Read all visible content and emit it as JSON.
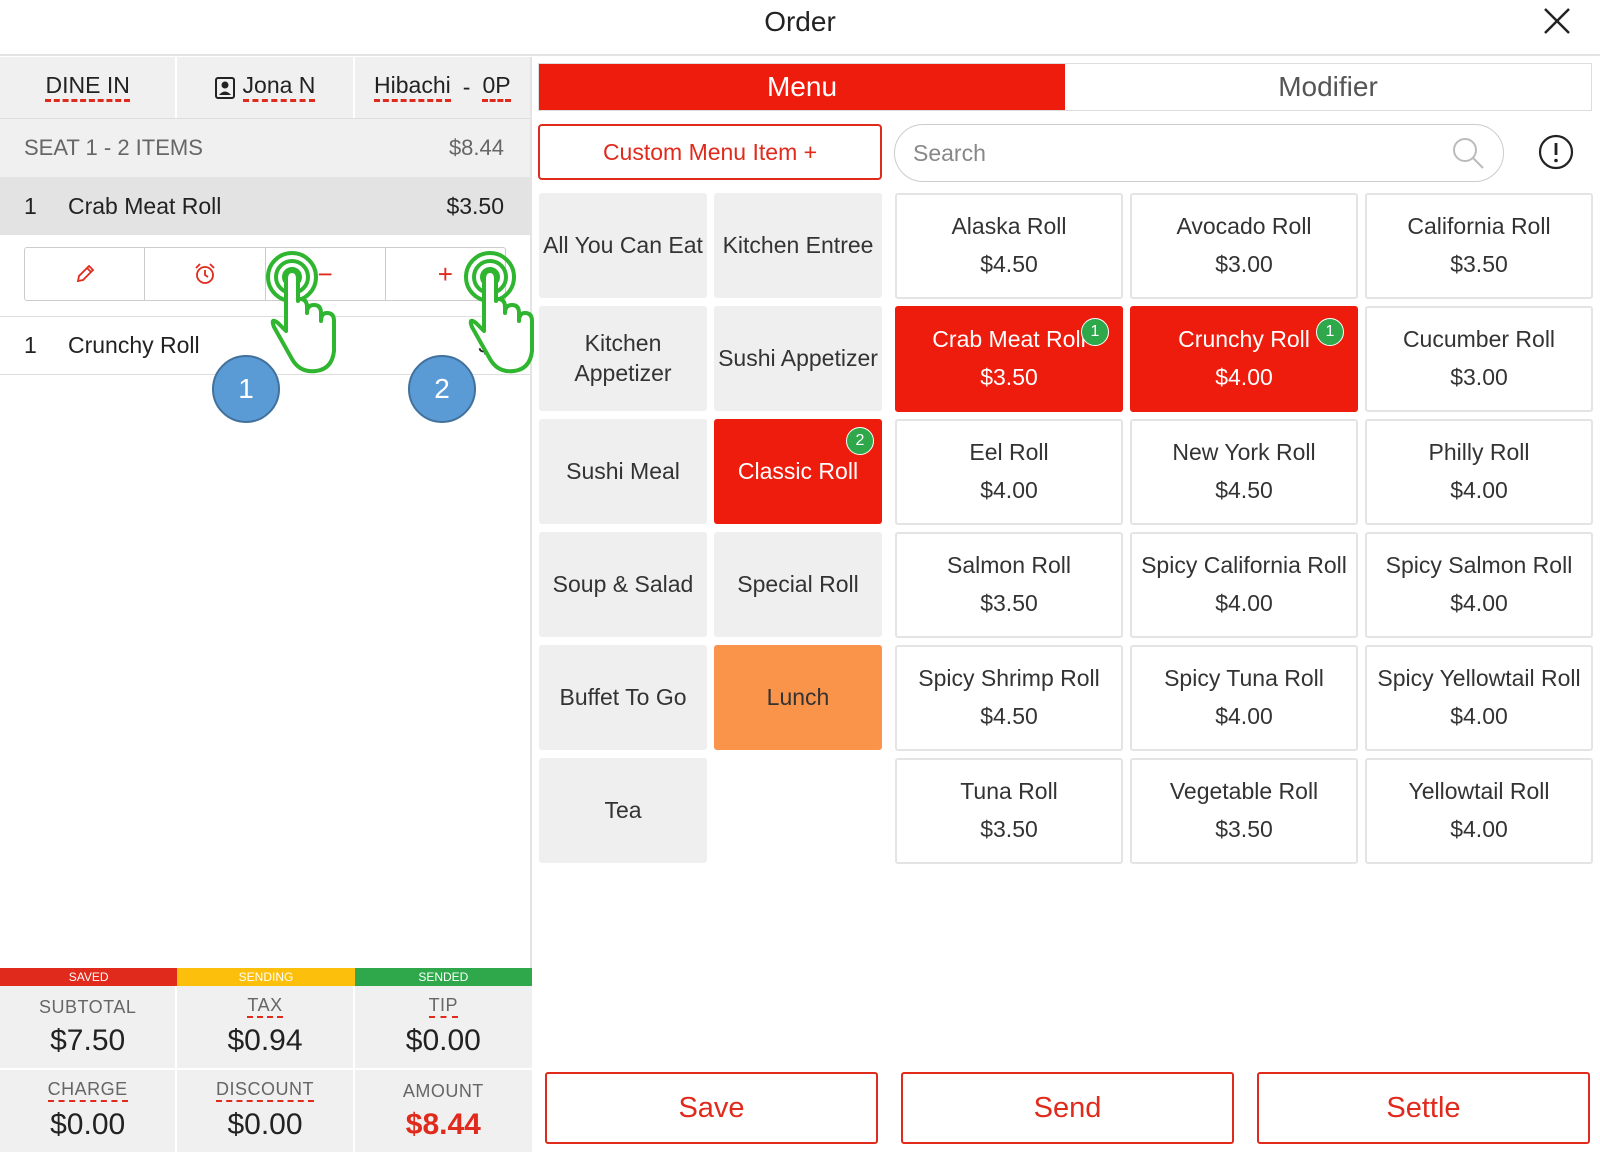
{
  "title": "Order",
  "header": {
    "order_type": "DINE IN",
    "server": "Jona N",
    "table_prefix": "Hibachi",
    "table_sep": "-",
    "table_num": "0P"
  },
  "seat": {
    "label": "SEAT 1 - 2 ITEMS",
    "total": "$8.44"
  },
  "order_items": [
    {
      "qty": "1",
      "name": "Crab Meat Roll",
      "price": "$3.50"
    },
    {
      "qty": "1",
      "name": "Crunchy Roll",
      "price": "$4"
    }
  ],
  "edit_bar": {
    "minus": "−",
    "plus": "+"
  },
  "callouts": [
    "1",
    "2"
  ],
  "status": {
    "saved": "SAVED",
    "sending": "SENDING",
    "sended": "SENDED"
  },
  "totals": {
    "subtotal_label": "SUBTOTAL",
    "subtotal": "$7.50",
    "tax_label": "TAX",
    "tax": "$0.94",
    "tip_label": "TIP",
    "tip": "$0.00",
    "charge_label": "CHARGE",
    "charge": "$0.00",
    "discount_label": "DISCOUNT",
    "discount": "$0.00",
    "amount_label": "AMOUNT",
    "amount": "$8.44"
  },
  "tabs": {
    "menu": "Menu",
    "modifier": "Modifier"
  },
  "custom_item": "Custom Menu Item  +",
  "search": {
    "placeholder": "Search"
  },
  "categories": [
    {
      "name": "All You Can Eat"
    },
    {
      "name": "Kitchen Entree"
    },
    {
      "name": "Kitchen Appetizer"
    },
    {
      "name": "Sushi Appetizer"
    },
    {
      "name": "Sushi Meal"
    },
    {
      "name": "Classic Roll",
      "badge": "2"
    },
    {
      "name": "Soup & Salad"
    },
    {
      "name": "Special Roll"
    },
    {
      "name": "Buffet To Go"
    },
    {
      "name": "Lunch"
    },
    {
      "name": "Tea"
    }
  ],
  "items": [
    {
      "name": "Alaska Roll",
      "price": "$4.50"
    },
    {
      "name": "Avocado Roll",
      "price": "$3.00"
    },
    {
      "name": "California Roll",
      "price": "$3.50"
    },
    {
      "name": "Crab Meat Roll",
      "price": "$3.50",
      "badge": "1"
    },
    {
      "name": "Crunchy Roll",
      "price": "$4.00",
      "badge": "1"
    },
    {
      "name": "Cucumber Roll",
      "price": "$3.00"
    },
    {
      "name": "Eel Roll",
      "price": "$4.00"
    },
    {
      "name": "New York Roll",
      "price": "$4.50"
    },
    {
      "name": "Philly Roll",
      "price": "$4.00"
    },
    {
      "name": "Salmon Roll",
      "price": "$3.50"
    },
    {
      "name": "Spicy California Roll",
      "price": "$4.00"
    },
    {
      "name": "Spicy Salmon Roll",
      "price": "$4.00"
    },
    {
      "name": "Spicy Shrimp Roll",
      "price": "$4.50"
    },
    {
      "name": "Spicy Tuna Roll",
      "price": "$4.00"
    },
    {
      "name": "Spicy Yellowtail Roll",
      "price": "$4.00"
    },
    {
      "name": "Tuna Roll",
      "price": "$3.50"
    },
    {
      "name": "Vegetable Roll",
      "price": "$3.50"
    },
    {
      "name": "Yellowtail Roll",
      "price": "$4.00"
    }
  ],
  "actions": {
    "save": "Save",
    "send": "Send",
    "settle": "Settle"
  },
  "colors": {
    "accent": "#ee1c0c",
    "lunch": "#f9944a",
    "badge": "#2ea84a",
    "saved": "#e02a1c",
    "sending": "#fbbf0c",
    "sended": "#2ea84a",
    "callout": "#5b9bd5"
  }
}
